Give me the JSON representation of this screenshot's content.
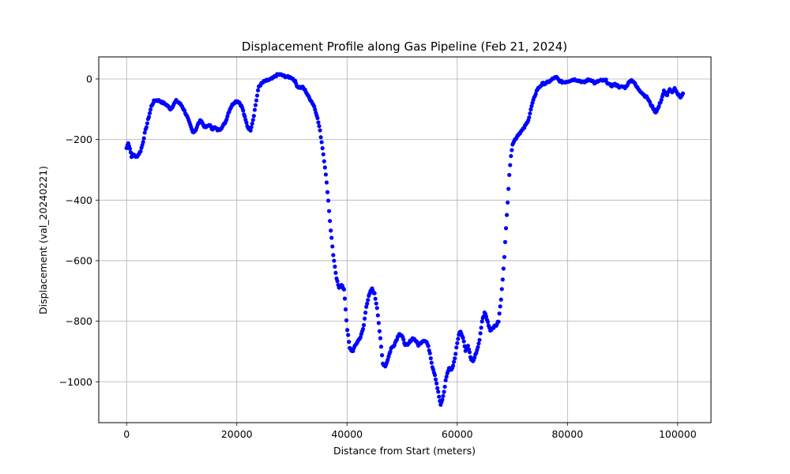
{
  "chart_data": {
    "type": "scatter",
    "title": "Displacement Profile along Gas Pipeline (Feb 21, 2024)",
    "xlabel": "Distance from Start (meters)",
    "ylabel": "Displacement (val_20240221)",
    "xlim": [
      -5050,
      106050
    ],
    "ylim": [
      -1135,
      73
    ],
    "xticks": [
      0,
      20000,
      40000,
      60000,
      80000,
      100000
    ],
    "xtick_labels": [
      "0",
      "20000",
      "40000",
      "60000",
      "80000",
      "100000"
    ],
    "yticks": [
      0,
      -200,
      -400,
      -600,
      -800,
      -1000
    ],
    "ytick_labels": [
      "0",
      "−200",
      "−400",
      "−600",
      "−800",
      "−1000"
    ],
    "grid": true,
    "marker_color": "#0000ff",
    "profile": [
      [
        0,
        -228
      ],
      [
        300,
        -210
      ],
      [
        600,
        -230
      ],
      [
        900,
        -255
      ],
      [
        1300,
        -248
      ],
      [
        1700,
        -260
      ],
      [
        2100,
        -250
      ],
      [
        2500,
        -240
      ],
      [
        2900,
        -215
      ],
      [
        3300,
        -180
      ],
      [
        3700,
        -150
      ],
      [
        4100,
        -120
      ],
      [
        4500,
        -90
      ],
      [
        5000,
        -72
      ],
      [
        5500,
        -70
      ],
      [
        6000,
        -72
      ],
      [
        6500,
        -78
      ],
      [
        7000,
        -82
      ],
      [
        7500,
        -90
      ],
      [
        8000,
        -100
      ],
      [
        8500,
        -85
      ],
      [
        9000,
        -72
      ],
      [
        9500,
        -78
      ],
      [
        10000,
        -88
      ],
      [
        10500,
        -105
      ],
      [
        11000,
        -125
      ],
      [
        11500,
        -150
      ],
      [
        12000,
        -175
      ],
      [
        12500,
        -170
      ],
      [
        13000,
        -148
      ],
      [
        13500,
        -135
      ],
      [
        14000,
        -155
      ],
      [
        14500,
        -160
      ],
      [
        15000,
        -150
      ],
      [
        15500,
        -165
      ],
      [
        16000,
        -160
      ],
      [
        16500,
        -168
      ],
      [
        17000,
        -165
      ],
      [
        17500,
        -155
      ],
      [
        18000,
        -140
      ],
      [
        18500,
        -110
      ],
      [
        19000,
        -90
      ],
      [
        19500,
        -78
      ],
      [
        20000,
        -72
      ],
      [
        20500,
        -78
      ],
      [
        21000,
        -95
      ],
      [
        21500,
        -130
      ],
      [
        22000,
        -160
      ],
      [
        22500,
        -168
      ],
      [
        23000,
        -130
      ],
      [
        23500,
        -75
      ],
      [
        24000,
        -25
      ],
      [
        24500,
        -15
      ],
      [
        25000,
        -8
      ],
      [
        25500,
        -5
      ],
      [
        26000,
        -2
      ],
      [
        26500,
        2
      ],
      [
        27000,
        10
      ],
      [
        27500,
        15
      ],
      [
        28000,
        14
      ],
      [
        28500,
        10
      ],
      [
        29000,
        8
      ],
      [
        29500,
        6
      ],
      [
        30000,
        4
      ],
      [
        30500,
        -5
      ],
      [
        31000,
        -25
      ],
      [
        31500,
        -28
      ],
      [
        32000,
        -28
      ],
      [
        32500,
        -40
      ],
      [
        33000,
        -58
      ],
      [
        33500,
        -72
      ],
      [
        34000,
        -88
      ],
      [
        34500,
        -118
      ],
      [
        35000,
        -160
      ],
      [
        35500,
        -220
      ],
      [
        36000,
        -290
      ],
      [
        36500,
        -380
      ],
      [
        37000,
        -490
      ],
      [
        37500,
        -580
      ],
      [
        38000,
        -650
      ],
      [
        38500,
        -690
      ],
      [
        39000,
        -678
      ],
      [
        39500,
        -700
      ],
      [
        40000,
        -820
      ],
      [
        40500,
        -890
      ],
      [
        41000,
        -900
      ],
      [
        41500,
        -880
      ],
      [
        42000,
        -865
      ],
      [
        42500,
        -850
      ],
      [
        43000,
        -820
      ],
      [
        43500,
        -750
      ],
      [
        44000,
        -715
      ],
      [
        44500,
        -692
      ],
      [
        45000,
        -710
      ],
      [
        45500,
        -760
      ],
      [
        46000,
        -850
      ],
      [
        46500,
        -940
      ],
      [
        47000,
        -948
      ],
      [
        47500,
        -920
      ],
      [
        48000,
        -890
      ],
      [
        48500,
        -880
      ],
      [
        49000,
        -860
      ],
      [
        49500,
        -840
      ],
      [
        50000,
        -850
      ],
      [
        50500,
        -875
      ],
      [
        51000,
        -880
      ],
      [
        51500,
        -865
      ],
      [
        52000,
        -855
      ],
      [
        52500,
        -865
      ],
      [
        53000,
        -880
      ],
      [
        53500,
        -868
      ],
      [
        54000,
        -862
      ],
      [
        54500,
        -870
      ],
      [
        55000,
        -900
      ],
      [
        55500,
        -950
      ],
      [
        56000,
        -980
      ],
      [
        56500,
        -1030
      ],
      [
        57000,
        -1078
      ],
      [
        57500,
        -1045
      ],
      [
        58000,
        -985
      ],
      [
        58500,
        -955
      ],
      [
        59000,
        -960
      ],
      [
        59500,
        -930
      ],
      [
        60000,
        -870
      ],
      [
        60500,
        -830
      ],
      [
        61000,
        -850
      ],
      [
        61500,
        -895
      ],
      [
        62000,
        -880
      ],
      [
        62500,
        -928
      ],
      [
        63000,
        -930
      ],
      [
        63500,
        -900
      ],
      [
        64000,
        -870
      ],
      [
        64500,
        -800
      ],
      [
        65000,
        -770
      ],
      [
        65500,
        -800
      ],
      [
        66000,
        -830
      ],
      [
        66500,
        -820
      ],
      [
        67000,
        -815
      ],
      [
        67500,
        -800
      ],
      [
        68000,
        -720
      ],
      [
        68500,
        -600
      ],
      [
        69000,
        -450
      ],
      [
        69500,
        -300
      ],
      [
        70000,
        -215
      ],
      [
        70500,
        -200
      ],
      [
        71000,
        -185
      ],
      [
        71500,
        -175
      ],
      [
        72000,
        -165
      ],
      [
        72500,
        -150
      ],
      [
        73000,
        -130
      ],
      [
        73500,
        -90
      ],
      [
        74000,
        -60
      ],
      [
        74500,
        -35
      ],
      [
        75000,
        -25
      ],
      [
        75500,
        -15
      ],
      [
        76000,
        -15
      ],
      [
        76500,
        -10
      ],
      [
        77000,
        -5
      ],
      [
        77500,
        3
      ],
      [
        78000,
        5
      ],
      [
        78500,
        -5
      ],
      [
        79000,
        -10
      ],
      [
        79500,
        -10
      ],
      [
        80000,
        -8
      ],
      [
        80500,
        -5
      ],
      [
        81000,
        -2
      ],
      [
        81500,
        -2
      ],
      [
        82000,
        -5
      ],
      [
        82500,
        -8
      ],
      [
        83000,
        -12
      ],
      [
        83500,
        -5
      ],
      [
        84000,
        -2
      ],
      [
        84500,
        -5
      ],
      [
        85000,
        -15
      ],
      [
        85500,
        -8
      ],
      [
        86000,
        -5
      ],
      [
        86500,
        -5
      ],
      [
        87000,
        -5
      ],
      [
        87500,
        -18
      ],
      [
        88000,
        -22
      ],
      [
        88500,
        -18
      ],
      [
        89000,
        -20
      ],
      [
        89500,
        -28
      ],
      [
        90000,
        -25
      ],
      [
        90500,
        -28
      ],
      [
        91000,
        -15
      ],
      [
        91500,
        -3
      ],
      [
        92000,
        -8
      ],
      [
        92500,
        -25
      ],
      [
        93000,
        -35
      ],
      [
        93500,
        -45
      ],
      [
        94000,
        -55
      ],
      [
        94500,
        -62
      ],
      [
        95000,
        -80
      ],
      [
        95500,
        -95
      ],
      [
        96000,
        -110
      ],
      [
        96500,
        -95
      ],
      [
        97000,
        -70
      ],
      [
        97500,
        -40
      ],
      [
        98000,
        -55
      ],
      [
        98500,
        -35
      ],
      [
        99000,
        -45
      ],
      [
        99500,
        -30
      ],
      [
        100000,
        -50
      ],
      [
        100500,
        -60
      ],
      [
        101000,
        -45
      ]
    ]
  }
}
